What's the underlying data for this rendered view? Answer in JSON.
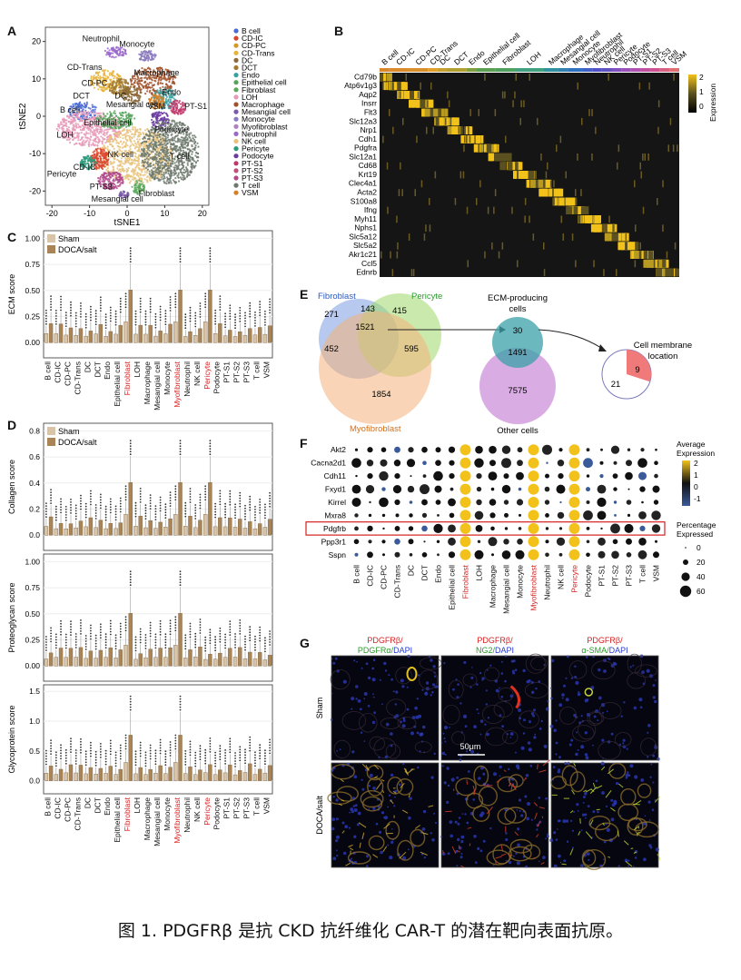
{
  "panels": {
    "A": "A",
    "B": "B",
    "C": "C",
    "D": "D",
    "E": "E",
    "F": "F",
    "G": "G"
  },
  "caption": "图 1. PDGFRβ 是抗 CKD 抗纤维化 CAR-T 的潜在靶向表面抗原。",
  "panelA": {
    "xlabel": "tSNE1",
    "ylabel": "tSNE2",
    "xticks": [
      "-20",
      "-10",
      "0",
      "10",
      "20"
    ],
    "yticks": [
      "20",
      "10",
      "0",
      "-10",
      "-20"
    ],
    "cluster_labels": [
      "Neutrophil",
      "Monocyte",
      "CD-Trans",
      "CD-PC",
      "Macrophage",
      "DCT",
      "DC",
      "Endo",
      "B cell",
      "Mesangial cell",
      "VSM",
      "PT-S1",
      "Epithelial cell",
      "Podocyte",
      "LOH",
      "NK cell",
      "T cell",
      "CD-IC",
      "Pericyte",
      "PT-S3",
      "Mesangial cell",
      "Fibroblast"
    ],
    "legend": [
      {
        "name": "B cell",
        "color": "#4a6bd8"
      },
      {
        "name": "CD-IC",
        "color": "#d9462e"
      },
      {
        "name": "CD-PC",
        "color": "#d39a2a"
      },
      {
        "name": "CD-Trans",
        "color": "#e6b33c"
      },
      {
        "name": "DC",
        "color": "#8a6a3a"
      },
      {
        "name": "DCT",
        "color": "#a07a30"
      },
      {
        "name": "Endo",
        "color": "#3ca0a0"
      },
      {
        "name": "Epithelial cell",
        "color": "#56a35a"
      },
      {
        "name": "Fibroblast",
        "color": "#5aa85a"
      },
      {
        "name": "LOH",
        "color": "#e79ab8"
      },
      {
        "name": "Macrophage",
        "color": "#a0522d"
      },
      {
        "name": "Mesangial cell",
        "color": "#7b5aa8"
      },
      {
        "name": "Monocyte",
        "color": "#8c7ac0"
      },
      {
        "name": "Myofibroblast",
        "color": "#b07fbf"
      },
      {
        "name": "Neutrophil",
        "color": "#9a6acb"
      },
      {
        "name": "NK cell",
        "color": "#e8c27a"
      },
      {
        "name": "Pericyte",
        "color": "#2a9a7a"
      },
      {
        "name": "Podocyte",
        "color": "#6a3aa0"
      },
      {
        "name": "PT-S1",
        "color": "#c0396b"
      },
      {
        "name": "PT-S2",
        "color": "#c0507a"
      },
      {
        "name": "PT-S3",
        "color": "#b04a8a"
      },
      {
        "name": "T cell",
        "color": "#6e7a6e"
      },
      {
        "name": "VSM",
        "color": "#d4802a"
      }
    ]
  },
  "panelB": {
    "top_labels": [
      "B cell",
      "CD-IC",
      "CD-PC",
      "CD-Trans",
      "DC",
      "DCT",
      "Endo",
      "Epithelial cell",
      "Fibroblast",
      "LOH",
      "Macrophage",
      "Mesangial cell",
      "Monocyte",
      "Myofibroblast",
      "Neutrophil",
      "NK cell",
      "Pericyte",
      "Podocyte",
      "PT-S1",
      "PT-S2",
      "PT-S3",
      "T cell",
      "VSM"
    ],
    "genes": [
      "Cd79b",
      "Atp6v1g3",
      "Aqp2",
      "Insrr",
      "Flt3",
      "Slc12a3",
      "Nrp1",
      "Cdh1",
      "Pdgfra",
      "Slc12a1",
      "Cd68",
      "Krt19",
      "Clec4a1",
      "Acta2",
      "S100a8",
      "Ifng",
      "Myh11",
      "Nphs1",
      "Slc5a12",
      "Slc5a2",
      "Akr1c21",
      "Ccl5",
      "Ednrb"
    ],
    "legend_title": "Expression",
    "legend_ticks": [
      "2",
      "1",
      "0"
    ]
  },
  "panelC": {
    "ylabel": "ECM score",
    "yticks": [
      "1.00",
      "0.75",
      "0.50",
      "0.25",
      "0.00"
    ],
    "legend": [
      {
        "name": "Sham",
        "color": "#d8c4a8"
      },
      {
        "name": "DOCA/salt",
        "color": "#a88456"
      }
    ],
    "categories": [
      "B cell",
      "CD-IC",
      "CD-PC",
      "CD-Trans",
      "DC",
      "DCT",
      "Endo",
      "Epithelial cell",
      "Fibroblast",
      "LOH",
      "Macrophage",
      "Mesangial cell",
      "Monocyte",
      "Myofibroblast",
      "Neutrophil",
      "NK cell",
      "Pericyte",
      "Podocyte",
      "PT-S1",
      "PT-S2",
      "PT-S3",
      "T cell",
      "VSM"
    ]
  },
  "panelD": {
    "legend": [
      {
        "name": "Sham",
        "color": "#d8c4a8"
      },
      {
        "name": "DOCA/salt",
        "color": "#a88456"
      }
    ],
    "subplots": [
      {
        "ylabel": "Collagen score",
        "yticks": [
          "0.8",
          "0.6",
          "0.4",
          "0.2",
          "0.0"
        ]
      },
      {
        "ylabel": "Proteoglycan score",
        "yticks": [
          "1.00",
          "0.75",
          "0.50",
          "0.25",
          "0.00"
        ]
      },
      {
        "ylabel": "Glycoprotein score",
        "yticks": [
          "1.5",
          "1.0",
          "0.5",
          "0.0"
        ]
      }
    ]
  },
  "panelE": {
    "venn1": {
      "fibroblast": "Fibroblast",
      "pericyte": "Pericyte",
      "myofibroblast": "Myofibroblast",
      "values": [
        "271",
        "143",
        "415",
        "1521",
        "452",
        "595",
        "1854"
      ]
    },
    "venn2": {
      "title_line1": "ECM-producing",
      "title_line2": "cells",
      "bottom": "Other cells",
      "values": [
        "30",
        "1491",
        "7575"
      ]
    },
    "pie": {
      "title_line1": "Cell membrane",
      "title_line2": "location",
      "values": [
        "9",
        "21"
      ]
    }
  },
  "panelF": {
    "genes": [
      "Akt2",
      "Cacna2d1",
      "Cdh11",
      "Fxyd1",
      "Kirrel",
      "Mxra8",
      "Pdgfrb",
      "Ppp3r1",
      "Sspn"
    ],
    "highlighted_gene": "Pdgfrb",
    "legend_avg_title_1": "Average",
    "legend_avg_title_2": "Expression",
    "legend_avg_ticks": [
      "2",
      "1",
      "0",
      "-1"
    ],
    "legend_pct_title_1": "Percentage",
    "legend_pct_title_2": "Expressed",
    "legend_pct_ticks": [
      "0",
      "20",
      "40",
      "60"
    ]
  },
  "panelG": {
    "col_titles": [
      {
        "red": "PDGFRβ/",
        "green": "PDGFRα/",
        "blue": "DAPI"
      },
      {
        "red": "PDGFRβ/",
        "green": "NG2/",
        "blue": "DAPI"
      },
      {
        "red": "PDGFRβ/",
        "green": "α-SMA/",
        "blue": "DAPI"
      }
    ],
    "row_labels": [
      "Sham",
      "DOCA/salt"
    ],
    "scale": "50μm"
  },
  "red_labels": [
    "Fibroblast",
    "Myofibroblast",
    "Pericyte"
  ]
}
